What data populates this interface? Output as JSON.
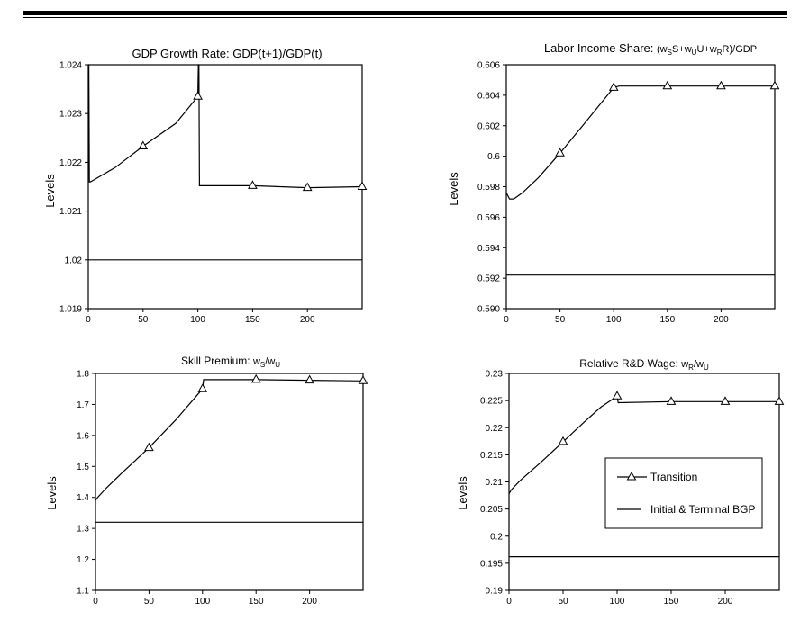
{
  "header_rule": true,
  "legend": {
    "items": [
      {
        "label": "Transition",
        "marker": "triangle"
      },
      {
        "label": "Initial & Terminal BGP",
        "marker": "none"
      }
    ]
  },
  "chart_data": [
    {
      "type": "line",
      "title": "GDP Growth Rate: GDP(t+1)/GDP(t)",
      "ylabel": "Levels",
      "xlim": [
        0,
        250
      ],
      "ylim": [
        1.019,
        1.024
      ],
      "xticks": [
        0,
        50,
        100,
        150,
        200
      ],
      "xtick_labels": [
        "0",
        "50",
        "100",
        "150",
        "200"
      ],
      "yticks": [
        1.019,
        1.02,
        1.021,
        1.022,
        1.023,
        1.024
      ],
      "ytick_labels": [
        "1.019",
        "1.02",
        "1.021",
        "1.022",
        "1.023",
        "1.024"
      ],
      "series": [
        {
          "name": "Transition",
          "x": [
            0,
            0.5,
            1,
            2,
            25,
            50,
            80,
            100,
            100.5,
            101,
            101.5,
            150,
            200,
            250
          ],
          "y": [
            1.024,
            1.024,
            1.0216,
            1.0216,
            1.0219,
            1.02233,
            1.0228,
            1.02335,
            1.024,
            1.024,
            1.02152,
            1.02152,
            1.02148,
            1.0215
          ],
          "markers_x": [
            50,
            100,
            150,
            200,
            250
          ]
        },
        {
          "name": "Initial & Terminal BGP",
          "x": [
            0,
            250
          ],
          "y": [
            1.02,
            1.02
          ]
        }
      ]
    },
    {
      "type": "line",
      "title": "Labor Income Share: (wSS+wUU+wRR)/GDP",
      "ylabel": "Levels",
      "xlim": [
        0,
        250
      ],
      "ylim": [
        0.59,
        0.606
      ],
      "xticks": [
        0,
        50,
        100,
        150,
        200
      ],
      "xtick_labels": [
        "0",
        "50",
        "100",
        "150",
        "200"
      ],
      "yticks": [
        0.59,
        0.592,
        0.594,
        0.596,
        0.598,
        0.6,
        0.602,
        0.604,
        0.606
      ],
      "ytick_labels": [
        "0.590",
        "0.592",
        "0.594",
        "0.596",
        "0.598",
        "0.6",
        "0.602",
        "0.604",
        "0.606"
      ],
      "series": [
        {
          "name": "Transition",
          "x": [
            0,
            3,
            7,
            15,
            30,
            50,
            70,
            100,
            105,
            150,
            200,
            250
          ],
          "y": [
            0.5976,
            0.5972,
            0.5972,
            0.5976,
            0.5986,
            0.6002,
            0.6019,
            0.6045,
            0.6046,
            0.6046,
            0.6046,
            0.6046
          ],
          "markers_x": [
            50,
            100,
            150,
            200,
            250
          ]
        },
        {
          "name": "Initial & Terminal BGP",
          "x": [
            0,
            250
          ],
          "y": [
            0.5922,
            0.5922
          ]
        }
      ]
    },
    {
      "type": "line",
      "title": "Skill Premium: wS/wU",
      "ylabel": "Levels",
      "xlim": [
        0,
        250
      ],
      "ylim": [
        1.1,
        1.8
      ],
      "xticks": [
        0,
        50,
        100,
        150,
        200
      ],
      "xtick_labels": [
        "0",
        "50",
        "100",
        "150",
        "200"
      ],
      "yticks": [
        1.1,
        1.2,
        1.3,
        1.4,
        1.5,
        1.6,
        1.7,
        1.8
      ],
      "ytick_labels": [
        "1.1",
        "1.2",
        "1.3",
        "1.4",
        "1.5",
        "1.6",
        "1.7",
        "1.8"
      ],
      "series": [
        {
          "name": "Transition",
          "x": [
            0,
            2,
            10,
            25,
            50,
            75,
            100,
            101,
            125,
            150,
            200,
            250
          ],
          "y": [
            1.39,
            1.4,
            1.43,
            1.48,
            1.56,
            1.65,
            1.75,
            1.78,
            1.78,
            1.78,
            1.778,
            1.776
          ],
          "markers_x": [
            50,
            100,
            150,
            200,
            250
          ]
        },
        {
          "name": "Initial & Terminal BGP",
          "x": [
            0,
            250
          ],
          "y": [
            1.32,
            1.32
          ]
        }
      ]
    },
    {
      "type": "line",
      "title": "Relative R&D Wage: wR/wU",
      "ylabel": "Levels",
      "xlim": [
        0,
        250
      ],
      "ylim": [
        0.19,
        0.23
      ],
      "xticks": [
        0,
        50,
        100,
        150,
        200
      ],
      "xtick_labels": [
        "0",
        "50",
        "100",
        "150",
        "200"
      ],
      "yticks": [
        0.19,
        0.195,
        0.2,
        0.205,
        0.21,
        0.215,
        0.22,
        0.225,
        0.23
      ],
      "ytick_labels": [
        "0.19",
        "0.195",
        "0.2",
        "0.205",
        "0.21",
        "0.215",
        "0.22",
        "0.225",
        "0.23"
      ],
      "series": [
        {
          "name": "Transition",
          "x": [
            0,
            2,
            10,
            30,
            50,
            70,
            85,
            100,
            101,
            150,
            200,
            250
          ],
          "y": [
            0.2078,
            0.2085,
            0.2102,
            0.2137,
            0.2174,
            0.2211,
            0.2238,
            0.2258,
            0.2246,
            0.2248,
            0.2248,
            0.2248
          ],
          "markers_x": [
            50,
            100,
            150,
            200,
            250
          ]
        },
        {
          "name": "Initial & Terminal BGP",
          "x": [
            0,
            250
          ],
          "y": [
            0.1962,
            0.1962
          ]
        }
      ]
    }
  ]
}
